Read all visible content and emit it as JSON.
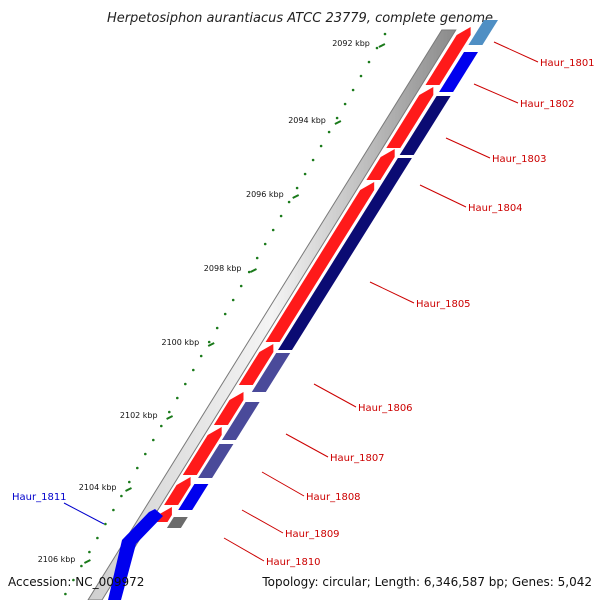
{
  "title": "Herpetosiphon aurantiacus ATCC 23779, complete genome",
  "accession": "Accession: NC_009972",
  "summary": "Topology: circular; Length: 6,346,587 bp; Genes: 5,042",
  "colors": {
    "forward_cds": "#ff1a1a",
    "reverse_cds": "#0000ee",
    "reverse_cds_dark": "#0b0b73",
    "reverse_cds_muted": "#4a4a9a",
    "gray_feature": "#6b6b6b",
    "light_blue_feature": "#4f8fc4",
    "tick": "#1a7a1a",
    "backbone": "#9a9a9a",
    "label_forward": "#cc0000",
    "label_reverse": "#0000cc"
  },
  "ticks": [
    {
      "label": "2092 kbp"
    },
    {
      "label": "2094 kbp"
    },
    {
      "label": "2096 kbp"
    },
    {
      "label": "2098 kbp"
    },
    {
      "label": "2100 kbp"
    },
    {
      "label": "2102 kbp"
    },
    {
      "label": "2104 kbp"
    },
    {
      "label": "2106 kbp"
    }
  ],
  "genes": [
    {
      "name": "Haur_1801",
      "strand": "reverse"
    },
    {
      "name": "Haur_1802",
      "strand": "reverse"
    },
    {
      "name": "Haur_1803",
      "strand": "reverse"
    },
    {
      "name": "Haur_1804",
      "strand": "reverse"
    },
    {
      "name": "Haur_1805",
      "strand": "reverse"
    },
    {
      "name": "Haur_1806",
      "strand": "reverse"
    },
    {
      "name": "Haur_1807",
      "strand": "reverse"
    },
    {
      "name": "Haur_1808",
      "strand": "reverse"
    },
    {
      "name": "Haur_1809",
      "strand": "reverse"
    },
    {
      "name": "Haur_1810",
      "strand": "reverse"
    },
    {
      "name": "Haur_1811",
      "strand": "forward"
    }
  ]
}
